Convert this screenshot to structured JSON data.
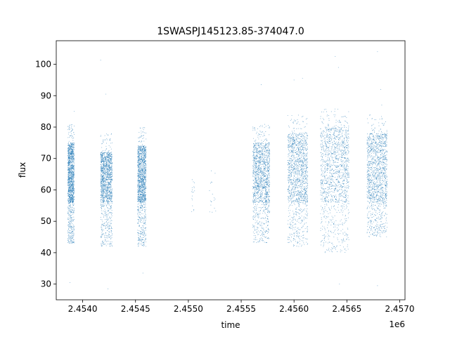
{
  "chart_data": {
    "type": "scatter",
    "title": "1SWASPJ145123.85-374047.0",
    "xlabel": "time",
    "ylabel": "flux",
    "x_offset_label": "1e6",
    "xlim": [
      2453750,
      2457050
    ],
    "ylim": [
      25,
      107.5
    ],
    "x_ticks": [
      2.454,
      2.4545,
      2.455,
      2.4555,
      2.456,
      2.4565,
      2.457
    ],
    "x_tick_labels": [
      "2.4540",
      "2.4545",
      "2.4550",
      "2.4555",
      "2.4560",
      "2.4565",
      "2.4570"
    ],
    "y_ticks": [
      30,
      40,
      50,
      60,
      70,
      80,
      90,
      100
    ],
    "y_tick_labels": [
      "30",
      "40",
      "50",
      "60",
      "70",
      "80",
      "90",
      "100"
    ],
    "grid": false,
    "marker_color": "#1f77b4",
    "clusters": [
      {
        "x": [
          2453860,
          2453920
        ],
        "y": [
          43,
          75
        ],
        "x_unit": "days",
        "density": "high"
      },
      {
        "x": [
          2454170,
          2454280
        ],
        "y": [
          42,
          72
        ],
        "x_unit": "days",
        "density": "high"
      },
      {
        "x": [
          2454520,
          2454600
        ],
        "y": [
          42,
          74
        ],
        "x_unit": "days",
        "density": "high"
      },
      {
        "x": [
          2455030,
          2455060
        ],
        "y": [
          53,
          66
        ],
        "x_unit": "days",
        "density": "sparse"
      },
      {
        "x": [
          2455200,
          2455260
        ],
        "y": [
          52,
          68
        ],
        "x_unit": "days",
        "density": "sparse"
      },
      {
        "x": [
          2455610,
          2455770
        ],
        "y": [
          43,
          75
        ],
        "x_unit": "days",
        "density": "high"
      },
      {
        "x": [
          2455940,
          2456130
        ],
        "y": [
          42,
          78
        ],
        "x_unit": "days",
        "density": "high"
      },
      {
        "x": [
          2456250,
          2456520
        ],
        "y": [
          40,
          80
        ],
        "x_unit": "days",
        "density": "high"
      },
      {
        "x": [
          2456690,
          2456880
        ],
        "y": [
          45,
          78
        ],
        "x_unit": "days",
        "density": "high"
      }
    ],
    "outliers": [
      [
        2453880,
        30.5
      ],
      [
        2453920,
        85
      ],
      [
        2454170,
        101.3
      ],
      [
        2454220,
        90.5
      ],
      [
        2454240,
        28.5
      ],
      [
        2454570,
        33.5
      ],
      [
        2455690,
        93.5
      ],
      [
        2456000,
        95
      ],
      [
        2456080,
        95.5
      ],
      [
        2456390,
        102.5
      ],
      [
        2456420,
        99
      ],
      [
        2456430,
        30
      ],
      [
        2456790,
        104
      ],
      [
        2456790,
        29.5
      ],
      [
        2456830,
        87
      ],
      [
        2456820,
        92
      ]
    ]
  }
}
